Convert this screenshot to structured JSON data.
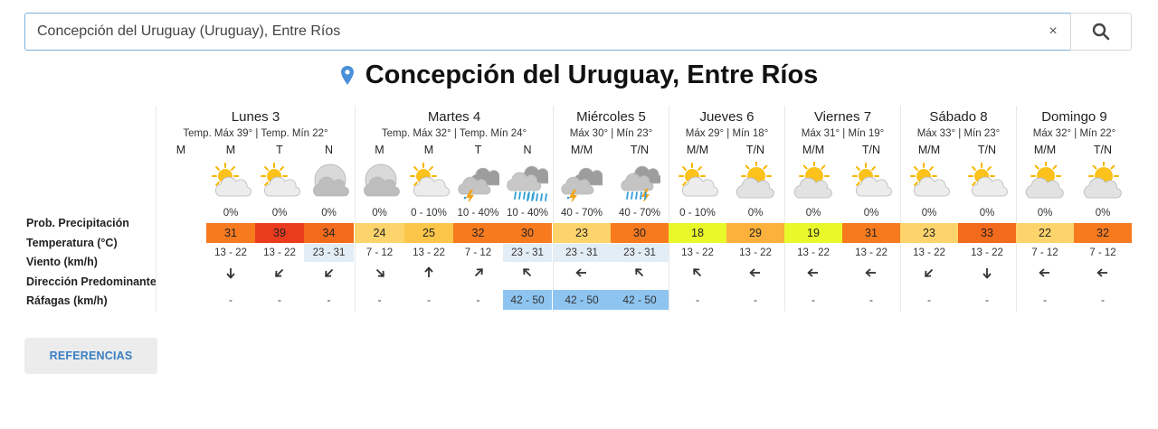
{
  "search": {
    "value": "Concepción del Uruguay (Uruguay), Entre Ríos",
    "clear_glyph": "×",
    "search_icon": "search-icon"
  },
  "page_title": "Concepción del Uruguay, Entre Ríos",
  "row_labels": {
    "precip": "Prob. Precipitación",
    "temp": "Temperatura (°C)",
    "wind": "Viento (km/h)",
    "direction": "Dirección Predominante",
    "gusts": "Ráfagas (km/h)"
  },
  "days": [
    {
      "name": "Lunes 3",
      "temps": "Temp. Máx 39° | Temp. Mín 22°"
    },
    {
      "name": "Martes 4",
      "temps": "Temp. Máx 32° | Temp. Mín 24°"
    },
    {
      "name": "Miércoles 5",
      "temps": "Máx 30° | Mín 23°"
    },
    {
      "name": "Jueves 6",
      "temps": "Máx 29° | Mín 18°"
    },
    {
      "name": "Viernes 7",
      "temps": "Máx 31° | Mín 19°"
    },
    {
      "name": "Sábado 8",
      "temps": "Máx 33° | Mín 23°"
    },
    {
      "name": "Domingo 9",
      "temps": "Máx 32° | Mín 22°"
    }
  ],
  "columns": [
    {
      "period": "M",
      "icon": "",
      "prob": "",
      "temp": "",
      "temp_bg": "",
      "wind": "",
      "wind_bg": "",
      "dir": "",
      "gust": "",
      "gust_bg": ""
    },
    {
      "period": "M",
      "icon": "partly-cloudy-day-icon",
      "prob": "0%",
      "temp": "31",
      "temp_bg": "#f77a1f",
      "wind": "13 - 22",
      "wind_bg": "",
      "dir": "down",
      "gust": "-",
      "gust_bg": ""
    },
    {
      "period": "T",
      "icon": "partly-cloudy-day-icon",
      "prob": "0%",
      "temp": "39",
      "temp_bg": "#ea3b1d",
      "wind": "13 - 22",
      "wind_bg": "",
      "dir": "down-left",
      "gust": "-",
      "gust_bg": ""
    },
    {
      "period": "N",
      "icon": "cloudy-night-icon",
      "prob": "0%",
      "temp": "34",
      "temp_bg": "#f26a1c",
      "wind": "23 - 31",
      "wind_bg": "#e3edf5",
      "dir": "down-left",
      "gust": "-",
      "gust_bg": ""
    },
    {
      "period": "M",
      "icon": "cloudy-night-icon",
      "prob": "0%",
      "temp": "24",
      "temp_bg": "#fdd46c",
      "wind": "7 - 12",
      "wind_bg": "",
      "dir": "down-right",
      "gust": "-",
      "gust_bg": ""
    },
    {
      "period": "M",
      "icon": "partly-cloudy-day-icon",
      "prob": "0 - 10%",
      "temp": "25",
      "temp_bg": "#fcc64b",
      "wind": "13 - 22",
      "wind_bg": "",
      "dir": "up",
      "gust": "-",
      "gust_bg": ""
    },
    {
      "period": "T",
      "icon": "thunderstorm-icon",
      "prob": "10 - 40%",
      "temp": "32",
      "temp_bg": "#f77a1f",
      "wind": "7 - 12",
      "wind_bg": "",
      "dir": "up-right",
      "gust": "-",
      "gust_bg": ""
    },
    {
      "period": "N",
      "icon": "rain-icon",
      "prob": "10 - 40%",
      "temp": "30",
      "temp_bg": "#f77a1f",
      "wind": "23 - 31",
      "wind_bg": "#e3edf5",
      "dir": "up-left",
      "gust": "42 - 50",
      "gust_bg": "#8ec4f0"
    },
    {
      "period": "M/M",
      "icon": "thunderstorm-icon",
      "prob": "40 - 70%",
      "temp": "23",
      "temp_bg": "#fdd46c",
      "wind": "23 - 31",
      "wind_bg": "#e3edf5",
      "dir": "left",
      "gust": "42 - 50",
      "gust_bg": "#8ec4f0"
    },
    {
      "period": "T/N",
      "icon": "storm-rain-icon",
      "prob": "40 - 70%",
      "temp": "30",
      "temp_bg": "#f77a1f",
      "wind": "23 - 31",
      "wind_bg": "#e3edf5",
      "dir": "up-left",
      "gust": "42 - 50",
      "gust_bg": "#8ec4f0"
    },
    {
      "period": "M/M",
      "icon": "partly-cloudy-day-icon",
      "prob": "0 - 10%",
      "temp": "18",
      "temp_bg": "#e9f82a",
      "wind": "13 - 22",
      "wind_bg": "",
      "dir": "up-left",
      "gust": "-",
      "gust_bg": ""
    },
    {
      "period": "T/N",
      "icon": "sunny-cloud-icon",
      "prob": "0%",
      "temp": "29",
      "temp_bg": "#fbb13c",
      "wind": "13 - 22",
      "wind_bg": "",
      "dir": "left",
      "gust": "-",
      "gust_bg": ""
    },
    {
      "period": "M/M",
      "icon": "sunny-cloud-icon",
      "prob": "0%",
      "temp": "19",
      "temp_bg": "#e9f82a",
      "wind": "13 - 22",
      "wind_bg": "",
      "dir": "left",
      "gust": "-",
      "gust_bg": ""
    },
    {
      "period": "T/N",
      "icon": "partly-cloudy-day-icon",
      "prob": "0%",
      "temp": "31",
      "temp_bg": "#f77a1f",
      "wind": "13 - 22",
      "wind_bg": "",
      "dir": "left",
      "gust": "-",
      "gust_bg": ""
    },
    {
      "period": "M/M",
      "icon": "partly-cloudy-day-icon",
      "prob": "0%",
      "temp": "23",
      "temp_bg": "#fdd46c",
      "wind": "13 - 22",
      "wind_bg": "",
      "dir": "down-left",
      "gust": "-",
      "gust_bg": ""
    },
    {
      "period": "T/N",
      "icon": "partly-cloudy-day-icon",
      "prob": "0%",
      "temp": "33",
      "temp_bg": "#f26a1c",
      "wind": "13 - 22",
      "wind_bg": "",
      "dir": "down",
      "gust": "-",
      "gust_bg": ""
    },
    {
      "period": "M/M",
      "icon": "sunny-cloud-icon",
      "prob": "0%",
      "temp": "22",
      "temp_bg": "#fdd46c",
      "wind": "7 - 12",
      "wind_bg": "",
      "dir": "left",
      "gust": "-",
      "gust_bg": ""
    },
    {
      "period": "T/N",
      "icon": "sunny-cloud-icon",
      "prob": "0%",
      "temp": "32",
      "temp_bg": "#f77a1f",
      "wind": "7 - 12",
      "wind_bg": "",
      "dir": "left",
      "gust": "-",
      "gust_bg": ""
    }
  ],
  "references_button": "REFERENCIAS",
  "colors": {
    "accent": "#3a7fc1",
    "pin": "#4a90d9"
  }
}
